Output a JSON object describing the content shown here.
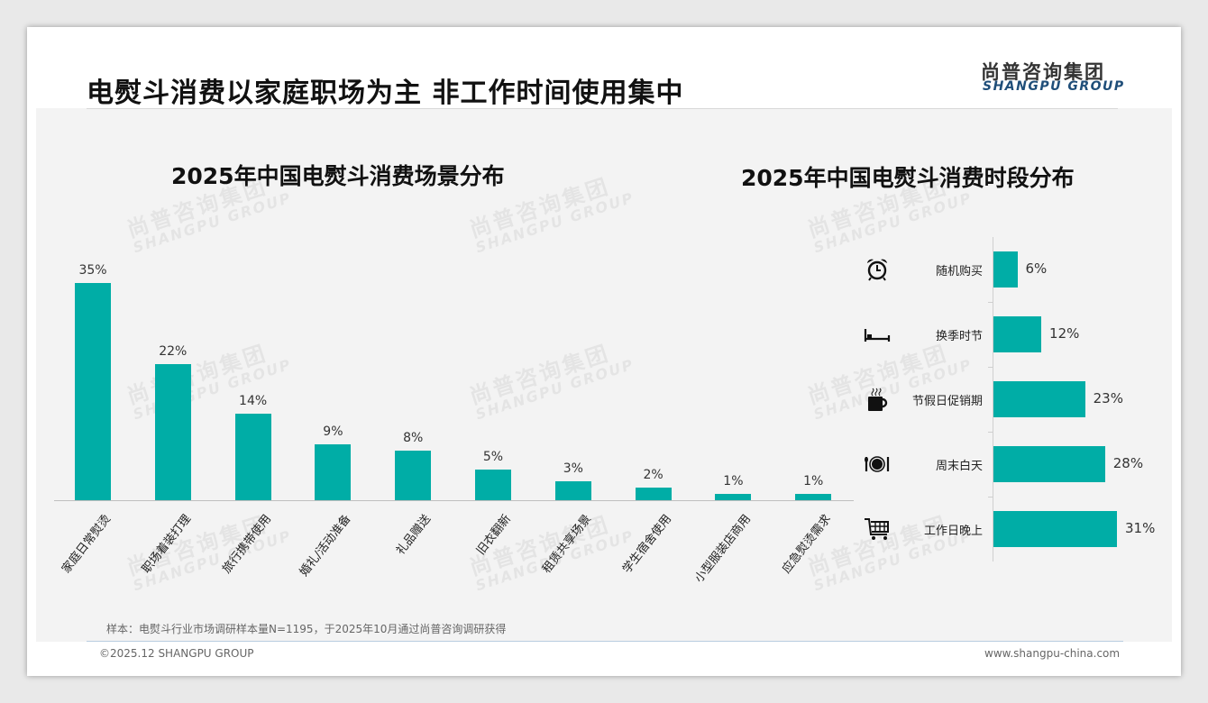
{
  "header": {
    "title": "电熨斗消费以家庭职场为主 非工作时间使用集中",
    "logo_cn": "尚普咨询集团",
    "logo_en": "SHANGPU GROUP"
  },
  "watermark": {
    "cn": "尚普咨询集团",
    "en": "SHANGPU GROUP"
  },
  "colors": {
    "bar": "#00ada6"
  },
  "chart_data": [
    {
      "type": "bar",
      "title": "2025年中国电熨斗消费场景分布",
      "unit": "%",
      "categories": [
        "家庭日常熨烫",
        "职场着装打理",
        "旅行携带使用",
        "婚礼/活动准备",
        "礼品赠送",
        "旧衣翻新",
        "租赁共享场景",
        "学生宿舍使用",
        "小型服装店商用",
        "应急熨烫需求"
      ],
      "values": [
        35,
        22,
        14,
        9,
        8,
        5,
        3,
        2,
        1,
        1
      ],
      "labels": [
        "35%",
        "22%",
        "14%",
        "9%",
        "8%",
        "5%",
        "3%",
        "2%",
        "1%",
        "1%"
      ],
      "ylim": [
        0,
        35
      ],
      "grid": false
    },
    {
      "type": "bar",
      "orientation": "horizontal",
      "title": "2025年中国电熨斗消费时段分布",
      "unit": "%",
      "categories": [
        "随机购买",
        "换季时节",
        "节假日促销期",
        "周末白天",
        "工作日晚上"
      ],
      "icons": [
        "alarm-clock-icon",
        "bed-icon",
        "hot-cup-icon",
        "plate-cutlery-icon",
        "shopping-cart-icon"
      ],
      "values": [
        6,
        12,
        23,
        28,
        31
      ],
      "labels": [
        "6%",
        "12%",
        "23%",
        "28%",
        "31%"
      ],
      "xlim": [
        0,
        31
      ],
      "grid": false
    }
  ],
  "footer": {
    "note": "样本：电熨斗行业市场调研样本量N=1195，于2025年10月通过尚普咨询调研获得",
    "copyright": "©2025.12 SHANGPU GROUP",
    "website": "www.shangpu-china.com"
  }
}
